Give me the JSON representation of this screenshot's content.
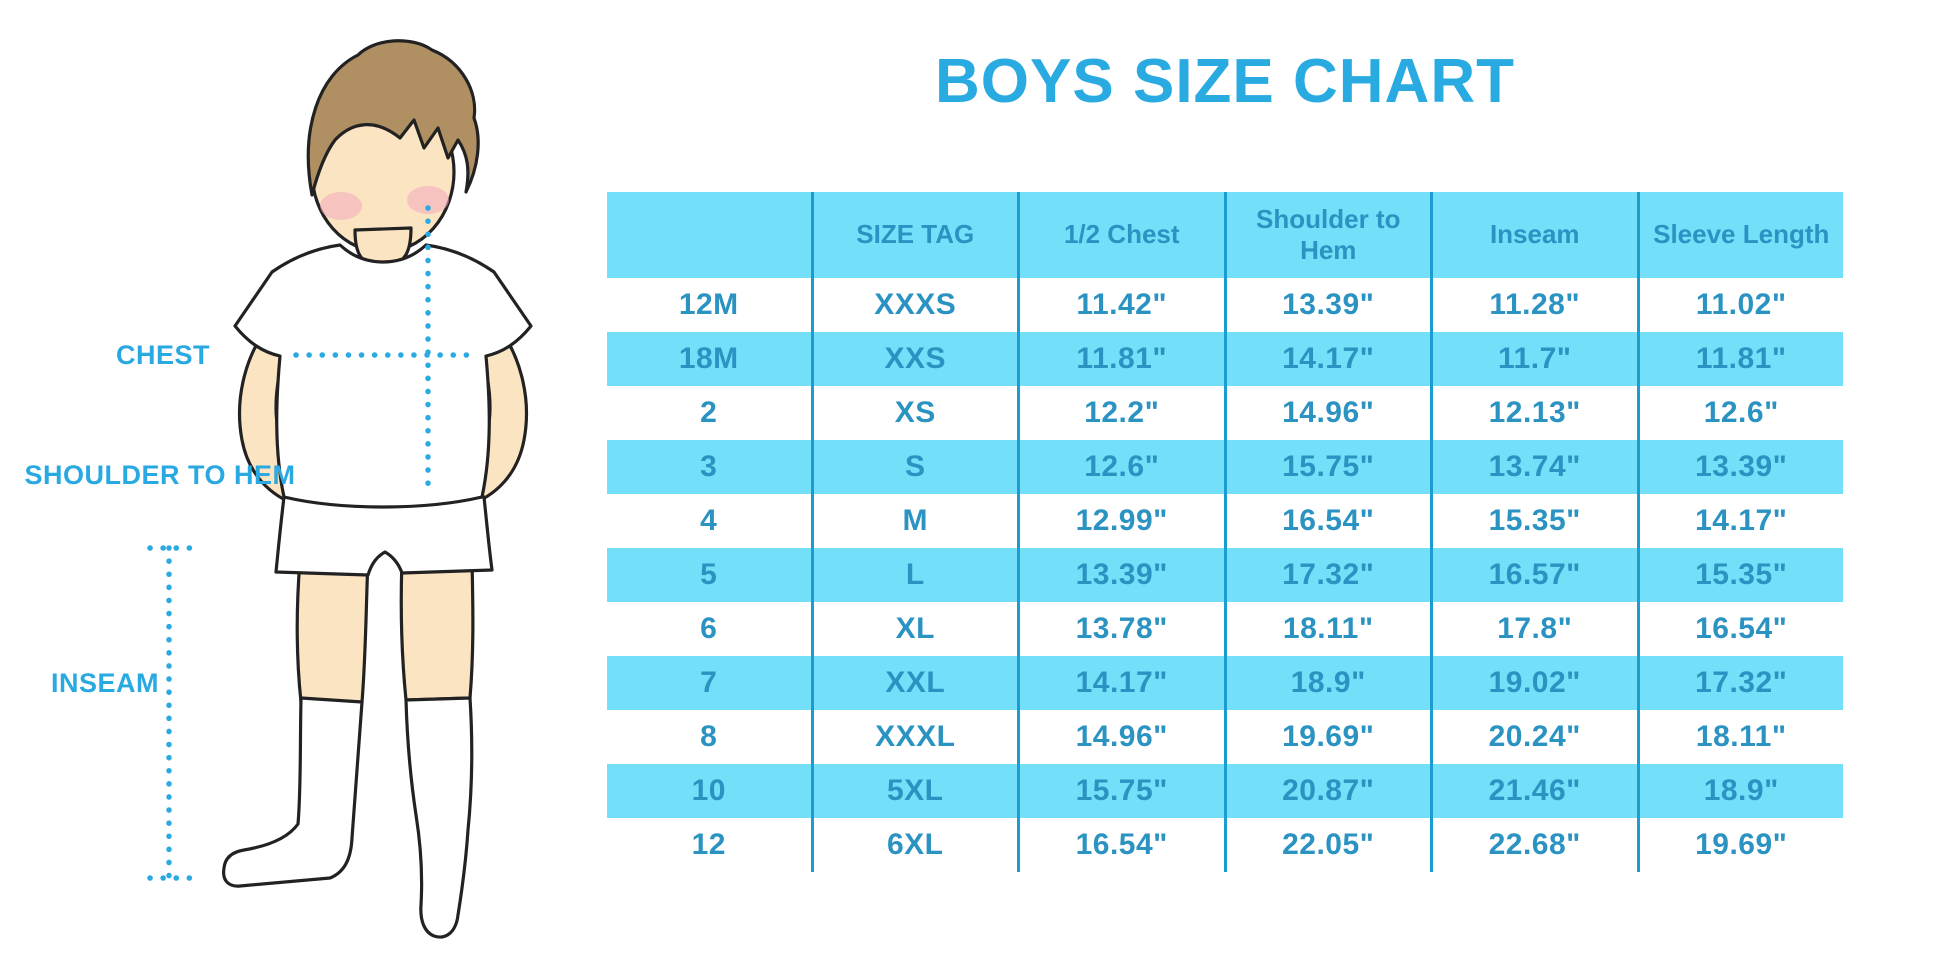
{
  "header": {
    "title": "BOYS SIZE CHART"
  },
  "illustration": {
    "description": "cartoon boy in white t-shirt, white shorts and knee socks with dotted measurement guides",
    "labels": {
      "chest": "CHEST",
      "shoulder_to_hem": "SHOULDER TO HEM",
      "inseam": "INSEAM"
    }
  },
  "colors": {
    "title_blue": "#29ABE2",
    "label_blue": "#29A9E1",
    "table_fill_cyan": "#74DFF9",
    "table_line_blue": "#1B9DD1",
    "table_text_blue": "#2A93C2",
    "dotted_line_blue": "#2BAAE2",
    "skin": "#FBE4C2",
    "hair_brown": "#B08F62",
    "blush_pink": "#F3A8BE",
    "outline": "#222222"
  },
  "chart_data": {
    "type": "table",
    "title": "BOYS SIZE CHART",
    "columns": [
      "",
      "SIZE TAG",
      "1/2 Chest",
      "Shoulder to Hem",
      "Inseam",
      "Sleeve Length"
    ],
    "row_header_column": "age size",
    "rows": [
      [
        "12M",
        "XXXS",
        "11.42\"",
        "13.39\"",
        "11.28\"",
        "11.02\""
      ],
      [
        "18M",
        "XXS",
        "11.81\"",
        "14.17\"",
        "11.7\"",
        "11.81\""
      ],
      [
        "2",
        "XS",
        "12.2\"",
        "14.96\"",
        "12.13\"",
        "12.6\""
      ],
      [
        "3",
        "S",
        "12.6\"",
        "15.75\"",
        "13.74\"",
        "13.39\""
      ],
      [
        "4",
        "M",
        "12.99\"",
        "16.54\"",
        "15.35\"",
        "14.17\""
      ],
      [
        "5",
        "L",
        "13.39\"",
        "17.32\"",
        "16.57\"",
        "15.35\""
      ],
      [
        "6",
        "XL",
        "13.78\"",
        "18.11\"",
        "17.8\"",
        "16.54\""
      ],
      [
        "7",
        "XXL",
        "14.17\"",
        "18.9\"",
        "19.02\"",
        "17.32\""
      ],
      [
        "8",
        "XXXL",
        "14.96\"",
        "19.69\"",
        "20.24\"",
        "18.11\""
      ],
      [
        "10",
        "5XL",
        "15.75\"",
        "20.87\"",
        "21.46\"",
        "18.9\""
      ],
      [
        "12",
        "6XL",
        "16.54\"",
        "22.05\"",
        "22.68\"",
        "19.69\""
      ]
    ],
    "layout": {
      "striping": "rows alternate white and light cyan, header row cyan",
      "grid": "vertical separator lines only, no outer border"
    }
  }
}
